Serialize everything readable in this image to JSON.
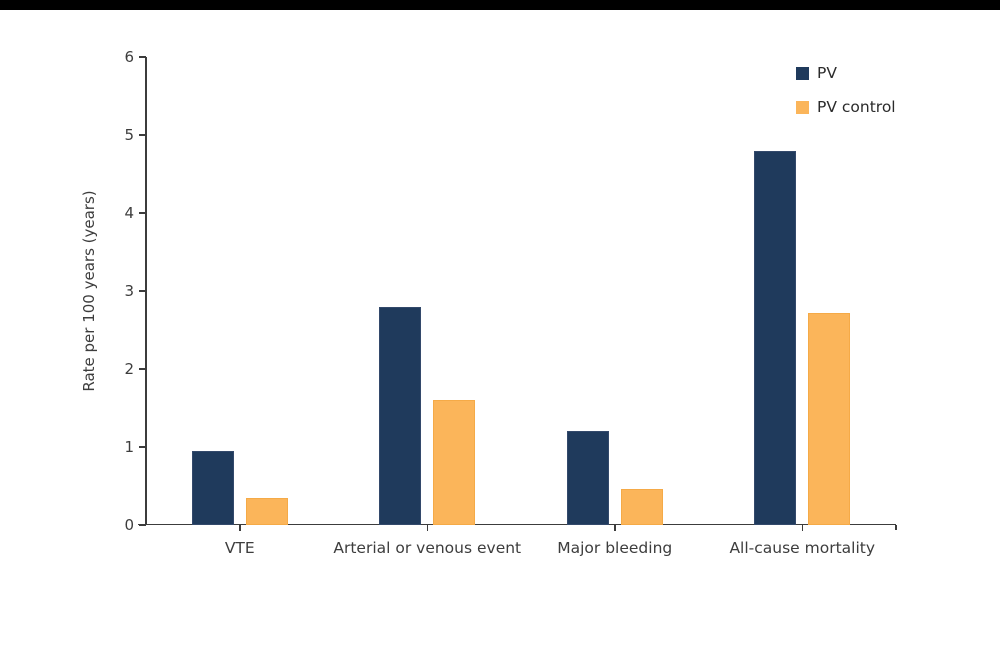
{
  "page": {
    "background_color": "#ffffff",
    "top_bar_color": "#000000"
  },
  "chart_data": {
    "type": "bar",
    "title": "",
    "xlabel": "",
    "ylabel": "Rate per 100 years (years)",
    "categories": [
      "VTE",
      "Arterial or venous event",
      "Major bleeding",
      "All-cause mortality"
    ],
    "series": [
      {
        "name": "PV",
        "color": "#1f3a5c",
        "edge_color": "#33496b",
        "values": [
          0.95,
          2.8,
          1.2,
          4.8
        ]
      },
      {
        "name": "PV control",
        "color": "#fbb55a",
        "edge_color": "#f5aa47",
        "values": [
          0.35,
          1.6,
          0.46,
          2.72
        ]
      }
    ],
    "ylim": [
      0,
      6
    ],
    "yticks": [
      0,
      1,
      2,
      3,
      4,
      5,
      6
    ],
    "grid": false,
    "legend_position": "top-right",
    "axis_color": "#3c3c3c",
    "text_color": "#3d3d3d"
  }
}
